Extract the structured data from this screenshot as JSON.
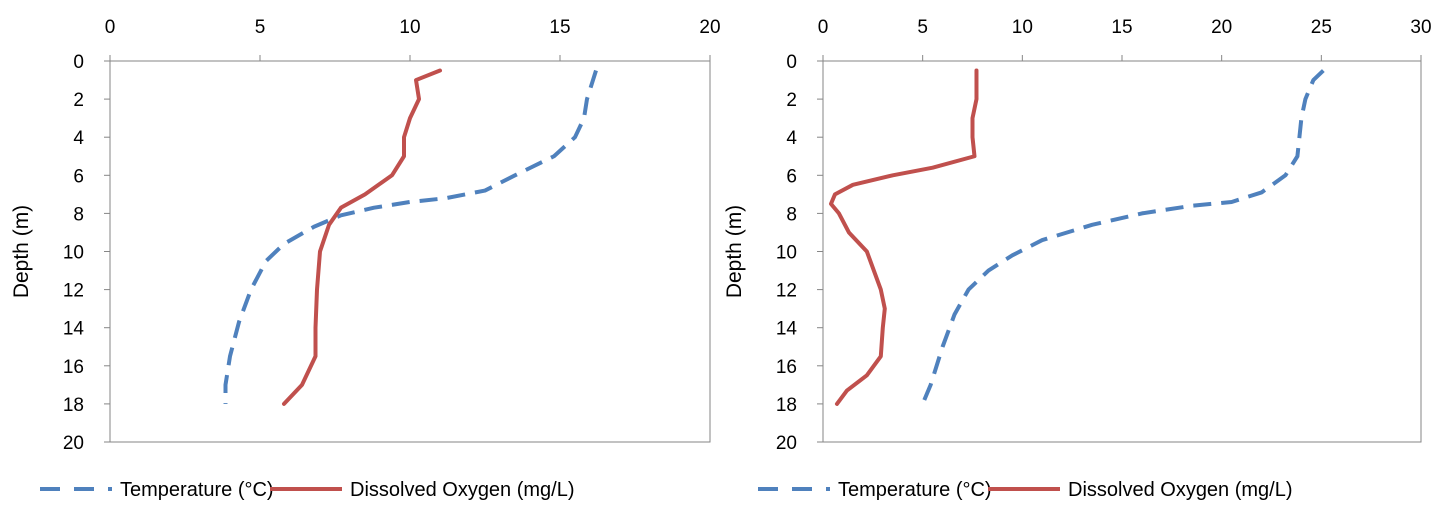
{
  "colors": {
    "temperature": "#4f81bd",
    "oxygen": "#c0504d",
    "axis": "#868686"
  },
  "chart_data": [
    {
      "type": "line",
      "title": "",
      "xlabel": "",
      "ylabel": "Depth (m)",
      "xlim": [
        0,
        20
      ],
      "ylim": [
        0,
        20
      ],
      "y_inverted": true,
      "x_axis_position": "top",
      "x_ticks": [
        "0",
        "5",
        "10",
        "15",
        "20"
      ],
      "y_ticks": [
        "0",
        "2",
        "4",
        "6",
        "8",
        "10",
        "12",
        "14",
        "16",
        "18",
        "20"
      ],
      "legend_position": "bottom",
      "series": [
        {
          "name": "Temperature (°C)",
          "style": "dashed",
          "points": [
            [
              16.2,
              0.5
            ],
            [
              16.1,
              1
            ],
            [
              15.9,
              2
            ],
            [
              15.8,
              3
            ],
            [
              15.5,
              4
            ],
            [
              14.8,
              5
            ],
            [
              13.5,
              6
            ],
            [
              12.5,
              6.8
            ],
            [
              11.2,
              7.2
            ],
            [
              10,
              7.4
            ],
            [
              8.8,
              7.7
            ],
            [
              7.7,
              8.1
            ],
            [
              6.8,
              8.7
            ],
            [
              5.8,
              9.6
            ],
            [
              5.2,
              10.5
            ],
            [
              4.7,
              12
            ],
            [
              4.3,
              13.7
            ],
            [
              4,
              15.5
            ],
            [
              3.85,
              17
            ],
            [
              3.85,
              18
            ]
          ]
        },
        {
          "name": "Dissolved Oxygen (mg/L)",
          "style": "solid",
          "points": [
            [
              11,
              0.5
            ],
            [
              10.2,
              1
            ],
            [
              10.3,
              2
            ],
            [
              10,
              3
            ],
            [
              9.8,
              4
            ],
            [
              9.8,
              5
            ],
            [
              9.4,
              6
            ],
            [
              8.5,
              7
            ],
            [
              7.7,
              7.7
            ],
            [
              7.3,
              8.6
            ],
            [
              7,
              10
            ],
            [
              6.9,
              12
            ],
            [
              6.85,
              14
            ],
            [
              6.85,
              15.5
            ],
            [
              6.4,
              17
            ],
            [
              5.8,
              18
            ]
          ]
        }
      ]
    },
    {
      "type": "line",
      "title": "",
      "xlabel": "",
      "ylabel": "Depth (m)",
      "xlim": [
        0,
        30
      ],
      "ylim": [
        0,
        20
      ],
      "y_inverted": true,
      "x_axis_position": "top",
      "x_ticks": [
        "0",
        "5",
        "10",
        "15",
        "20",
        "25",
        "30"
      ],
      "y_ticks": [
        "0",
        "2",
        "4",
        "6",
        "8",
        "10",
        "12",
        "14",
        "16",
        "18",
        "20"
      ],
      "legend_position": "bottom",
      "series": [
        {
          "name": "Temperature (°C)",
          "style": "dashed",
          "points": [
            [
              25.1,
              0.5
            ],
            [
              24.6,
              1
            ],
            [
              24.2,
              2
            ],
            [
              24,
              3
            ],
            [
              23.9,
              4
            ],
            [
              23.8,
              5
            ],
            [
              23.2,
              6
            ],
            [
              22,
              6.9
            ],
            [
              20.5,
              7.4
            ],
            [
              18.5,
              7.6
            ],
            [
              16,
              8
            ],
            [
              13.5,
              8.6
            ],
            [
              11,
              9.4
            ],
            [
              9.5,
              10.2
            ],
            [
              8.3,
              11
            ],
            [
              7.3,
              12
            ],
            [
              6.6,
              13.3
            ],
            [
              6,
              15
            ],
            [
              5.4,
              17
            ],
            [
              5,
              18
            ]
          ]
        },
        {
          "name": "Dissolved Oxygen (mg/L)",
          "style": "solid",
          "points": [
            [
              7.7,
              0.5
            ],
            [
              7.7,
              2
            ],
            [
              7.5,
              3
            ],
            [
              7.5,
              4
            ],
            [
              7.6,
              5
            ],
            [
              5.5,
              5.6
            ],
            [
              3.5,
              6
            ],
            [
              1.5,
              6.5
            ],
            [
              0.6,
              7
            ],
            [
              0.4,
              7.5
            ],
            [
              0.8,
              8
            ],
            [
              1.3,
              9
            ],
            [
              2.2,
              10
            ],
            [
              2.9,
              12
            ],
            [
              3.1,
              13
            ],
            [
              3,
              14
            ],
            [
              2.9,
              15.5
            ],
            [
              2.2,
              16.5
            ],
            [
              1.2,
              17.3
            ],
            [
              0.7,
              18
            ]
          ]
        }
      ]
    }
  ]
}
